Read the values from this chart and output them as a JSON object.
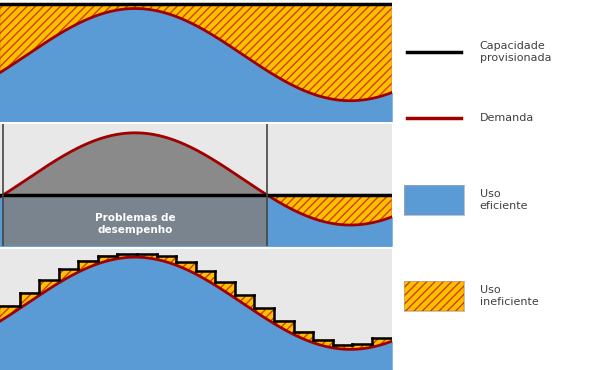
{
  "bg_color_panel1": "#ffffff",
  "bg_color_panel2": "#e8e8e8",
  "bg_color_panel3": "#e8e8e8",
  "blue_fill": "#5b9bd5",
  "orange_fill": "#ffc000",
  "orange_hatch_edge": "#d04000",
  "demand_line_color": "#a00000",
  "capacity_line_color": "#000000",
  "gray_fill": "#808080",
  "text_color": "#404040",
  "label_text": "Problemas de\ndesempenho",
  "panel1_cap_level": 0.97,
  "panel2_cap_level": 0.42,
  "legend_items": [
    {
      "label": "Capacidade\nprovisionada",
      "color": "#000000",
      "type": "line"
    },
    {
      "label": "Demanda",
      "color": "#a00000",
      "type": "line"
    },
    {
      "label": "Uso\neficiente",
      "color": "#5b9bd5",
      "type": "patch"
    },
    {
      "label": "Uso\nineficiente",
      "color": "#ffc000",
      "type": "hatch"
    }
  ]
}
